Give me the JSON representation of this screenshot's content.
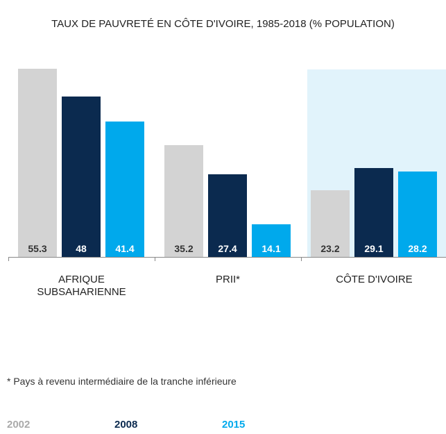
{
  "chart_data": {
    "type": "bar",
    "title": "TAUX DE PAUVRETÉ EN CÔTE D'IVOIRE, 1985-2018 (% POPULATION)",
    "categories": [
      "AFRIQUE SUBSAHARIENNE",
      "PRII*",
      "CÔTE D'IVOIRE"
    ],
    "series": [
      {
        "name": "2002",
        "color": "#d3d3d3",
        "values": [
          55.3,
          35.2,
          23.2
        ]
      },
      {
        "name": "2008",
        "color": "#0b2a4f",
        "values": [
          48,
          27.4,
          29.1
        ]
      },
      {
        "name": "2015",
        "color": "#00a9ec",
        "values": [
          41.4,
          14.1,
          28.2
        ]
      }
    ],
    "highlight": 2,
    "highlight_color": "#e1f3fb",
    "footnote": "* Pays à revenu intermédiaire de la tranche inférieure"
  }
}
